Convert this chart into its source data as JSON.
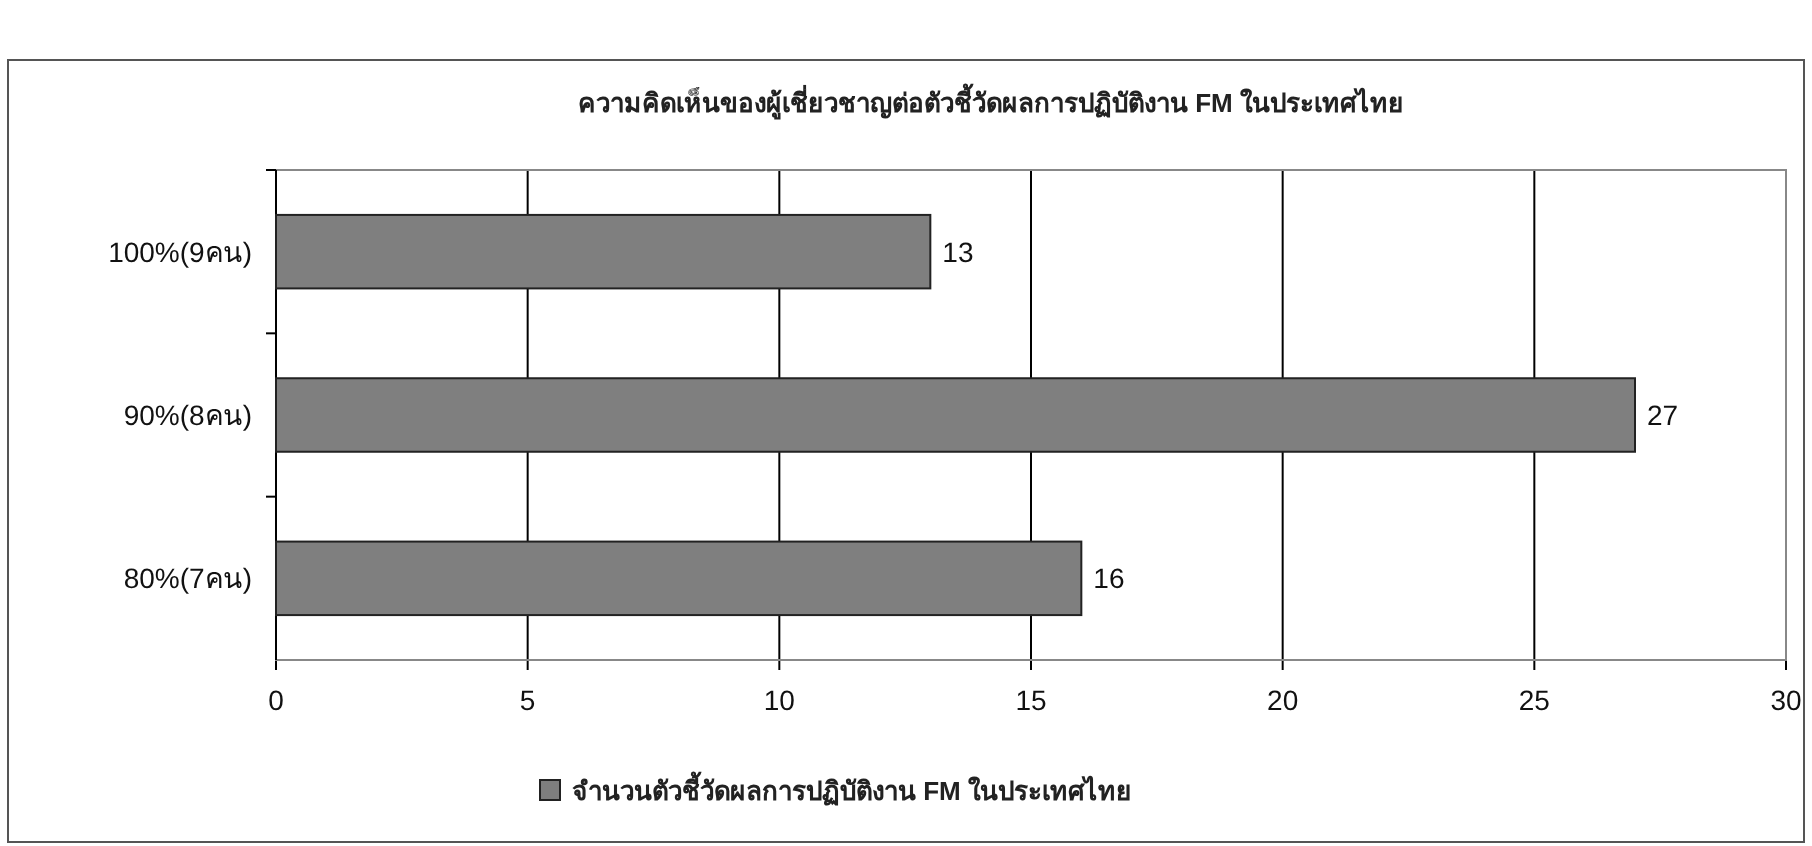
{
  "chart_data": {
    "type": "bar",
    "orientation": "horizontal",
    "title": "ความคิดเห็นของผู้เชี่ยวชาญต่อตัวชี้วัดผลการปฏิบัติงาน FM ในประเทศไทย",
    "categories": [
      "100%(9คน)",
      "90%(8คน)",
      "80%(7คน)"
    ],
    "series": [
      {
        "name": "จำนวนตัวชี้วัดผลการปฏิบัติงาน FM ในประเทศไทย",
        "color": "#7f7f7f",
        "values": [
          13,
          27,
          16
        ]
      }
    ],
    "xlim": [
      0,
      30
    ],
    "xticks": [
      0,
      5,
      10,
      15,
      20,
      25,
      30
    ],
    "grid": "x",
    "legend": "bottom",
    "data_labels": true
  }
}
